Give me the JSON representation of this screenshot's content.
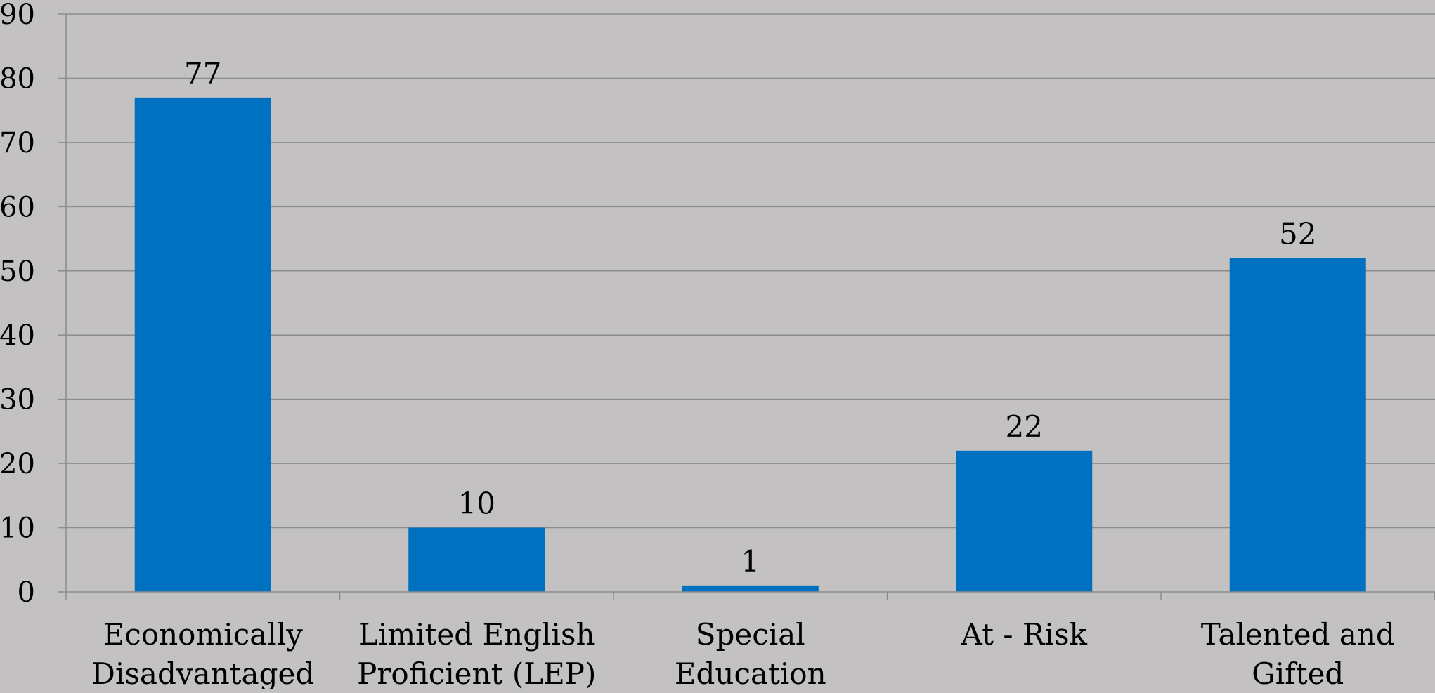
{
  "chart_data": {
    "type": "bar",
    "categories": [
      [
        "Economically",
        "Disadvantaged"
      ],
      [
        "Limited English",
        "Proficient (LEP)"
      ],
      [
        "Special",
        "Education"
      ],
      [
        "At - Risk"
      ],
      [
        "Talented and",
        "Gifted"
      ]
    ],
    "values": [
      77,
      10,
      1,
      22,
      52
    ],
    "data_labels": [
      "77",
      "10",
      "1",
      "22",
      "52"
    ],
    "y_ticks": [
      "0",
      "10",
      "20",
      "30",
      "40",
      "50",
      "60",
      "70",
      "80",
      "90"
    ],
    "ylim": [
      0,
      90
    ],
    "grid": true,
    "legend": "none",
    "colors": {
      "background": "#c3c1c2",
      "bar": "#0070c0",
      "gridline": "#8c8c8c",
      "text": "#000000"
    }
  }
}
